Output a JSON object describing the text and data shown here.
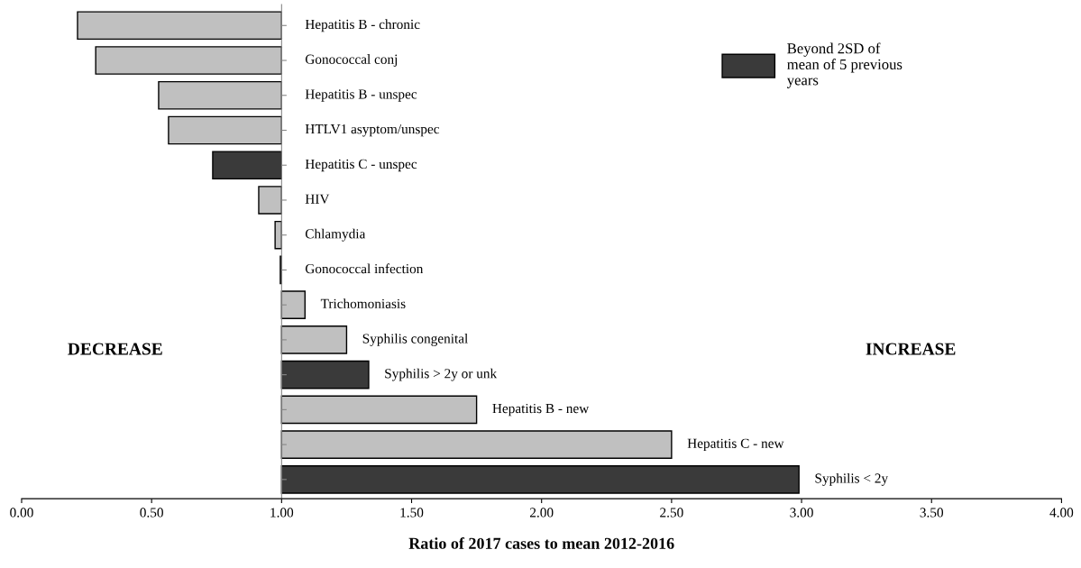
{
  "chart_data": {
    "type": "bar",
    "orientation": "horizontal",
    "categories": [
      "Hepatitis B - chronic",
      "Gonococcal conj",
      "Hepatitis B - unspec",
      "HTLV1 asyptom/unspec",
      "Hepatitis C - unspec",
      "HIV",
      "Chlamydia",
      "Gonococcal infection",
      "Trichomoniasis",
      "Syphilis congenital",
      "Syphilis > 2y or unk",
      "Hepatitis B - new",
      "Hepatitis C - new",
      "Syphilis < 2y"
    ],
    "series": [
      {
        "color": "#c0c0c0",
        "base": [
          1,
          1,
          1,
          1,
          null,
          1,
          1,
          1,
          1,
          1,
          null,
          1,
          1,
          null
        ],
        "values": [
          -0.785,
          -0.715,
          -0.473,
          -0.435,
          null,
          -0.088,
          -0.025,
          -0.005,
          0.09,
          0.25,
          null,
          0.75,
          1.5,
          null
        ]
      },
      {
        "name": "Beyond 2SD of\nmean of 5 previous\nyears",
        "color": "#3a3a3a",
        "base": [
          null,
          null,
          null,
          null,
          1,
          null,
          null,
          null,
          null,
          null,
          1,
          null,
          null,
          1
        ],
        "values": [
          null,
          null,
          null,
          null,
          -0.265,
          null,
          null,
          null,
          null,
          null,
          0.335,
          null,
          null,
          1.99
        ]
      }
    ],
    "xlim": [
      0,
      4
    ],
    "xticks": [
      {
        "value": 0,
        "label": "0.00"
      },
      {
        "value": 0.5,
        "label": "0.50"
      },
      {
        "value": 1,
        "label": "1.00"
      },
      {
        "value": 1.5,
        "label": "1.50"
      },
      {
        "value": 2,
        "label": "2.00"
      },
      {
        "value": 2.5,
        "label": "2.50"
      },
      {
        "value": 3,
        "label": "3.00"
      },
      {
        "value": 3.5,
        "label": "3.50"
      },
      {
        "value": 4,
        "label": "4.00"
      }
    ],
    "xlabel": "Ratio of 2017 cases to mean 2012-2016",
    "annotations": [
      "DECREASE",
      "INCREASE"
    ],
    "legend": "top right",
    "grid": false
  }
}
